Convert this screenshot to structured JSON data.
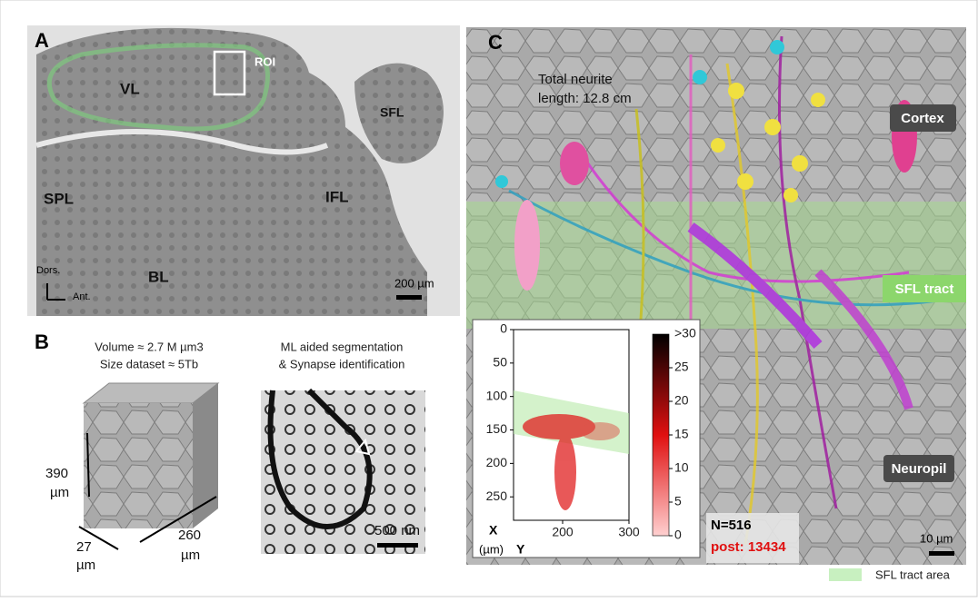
{
  "panel_a": {
    "letter": "A",
    "regions": [
      "VL",
      "SFL",
      "SPL",
      "IFL",
      "BL"
    ],
    "roi": "ROI",
    "dorsal": "Dors.",
    "anterior": "Ant.",
    "scale_bar": "200 µm"
  },
  "panel_b": {
    "letter": "B",
    "stats": [
      "Volume ≈ 2.7 M µm3",
      "Size dataset ≈ 5Tb"
    ],
    "method": [
      "ML aided segmentation",
      "& Synapse identification"
    ],
    "dimensions": [
      [
        "390",
        "µm"
      ],
      [
        "27",
        "µm"
      ],
      [
        "260",
        "µm"
      ]
    ],
    "scale_bar": "500 nm"
  },
  "panel_c": {
    "letter": "C",
    "neurite_length": [
      "Total neurite",
      "length: 12.8 cm"
    ],
    "regions": [
      "Cortex",
      "SFL tract",
      "Neuropil"
    ],
    "count": "N=516",
    "synapses": "post: 13434",
    "scale_bar": "10 µm",
    "inset": {
      "y_axis_label": "X",
      "unit": "(µm)",
      "x_axis_label": "Y",
      "ylim": [
        0,
        285
      ],
      "yticks": [
        0,
        50,
        100,
        150,
        200,
        250
      ],
      "xlim": [
        126,
        300
      ],
      "xticks": [
        200,
        300
      ],
      "colorbar_lim": [
        0,
        30
      ],
      "colorbar_ticks": [
        0,
        5,
        10,
        15,
        20,
        25
      ],
      "colorbar_max": ">30"
    }
  },
  "legend": "SFL tract area"
}
